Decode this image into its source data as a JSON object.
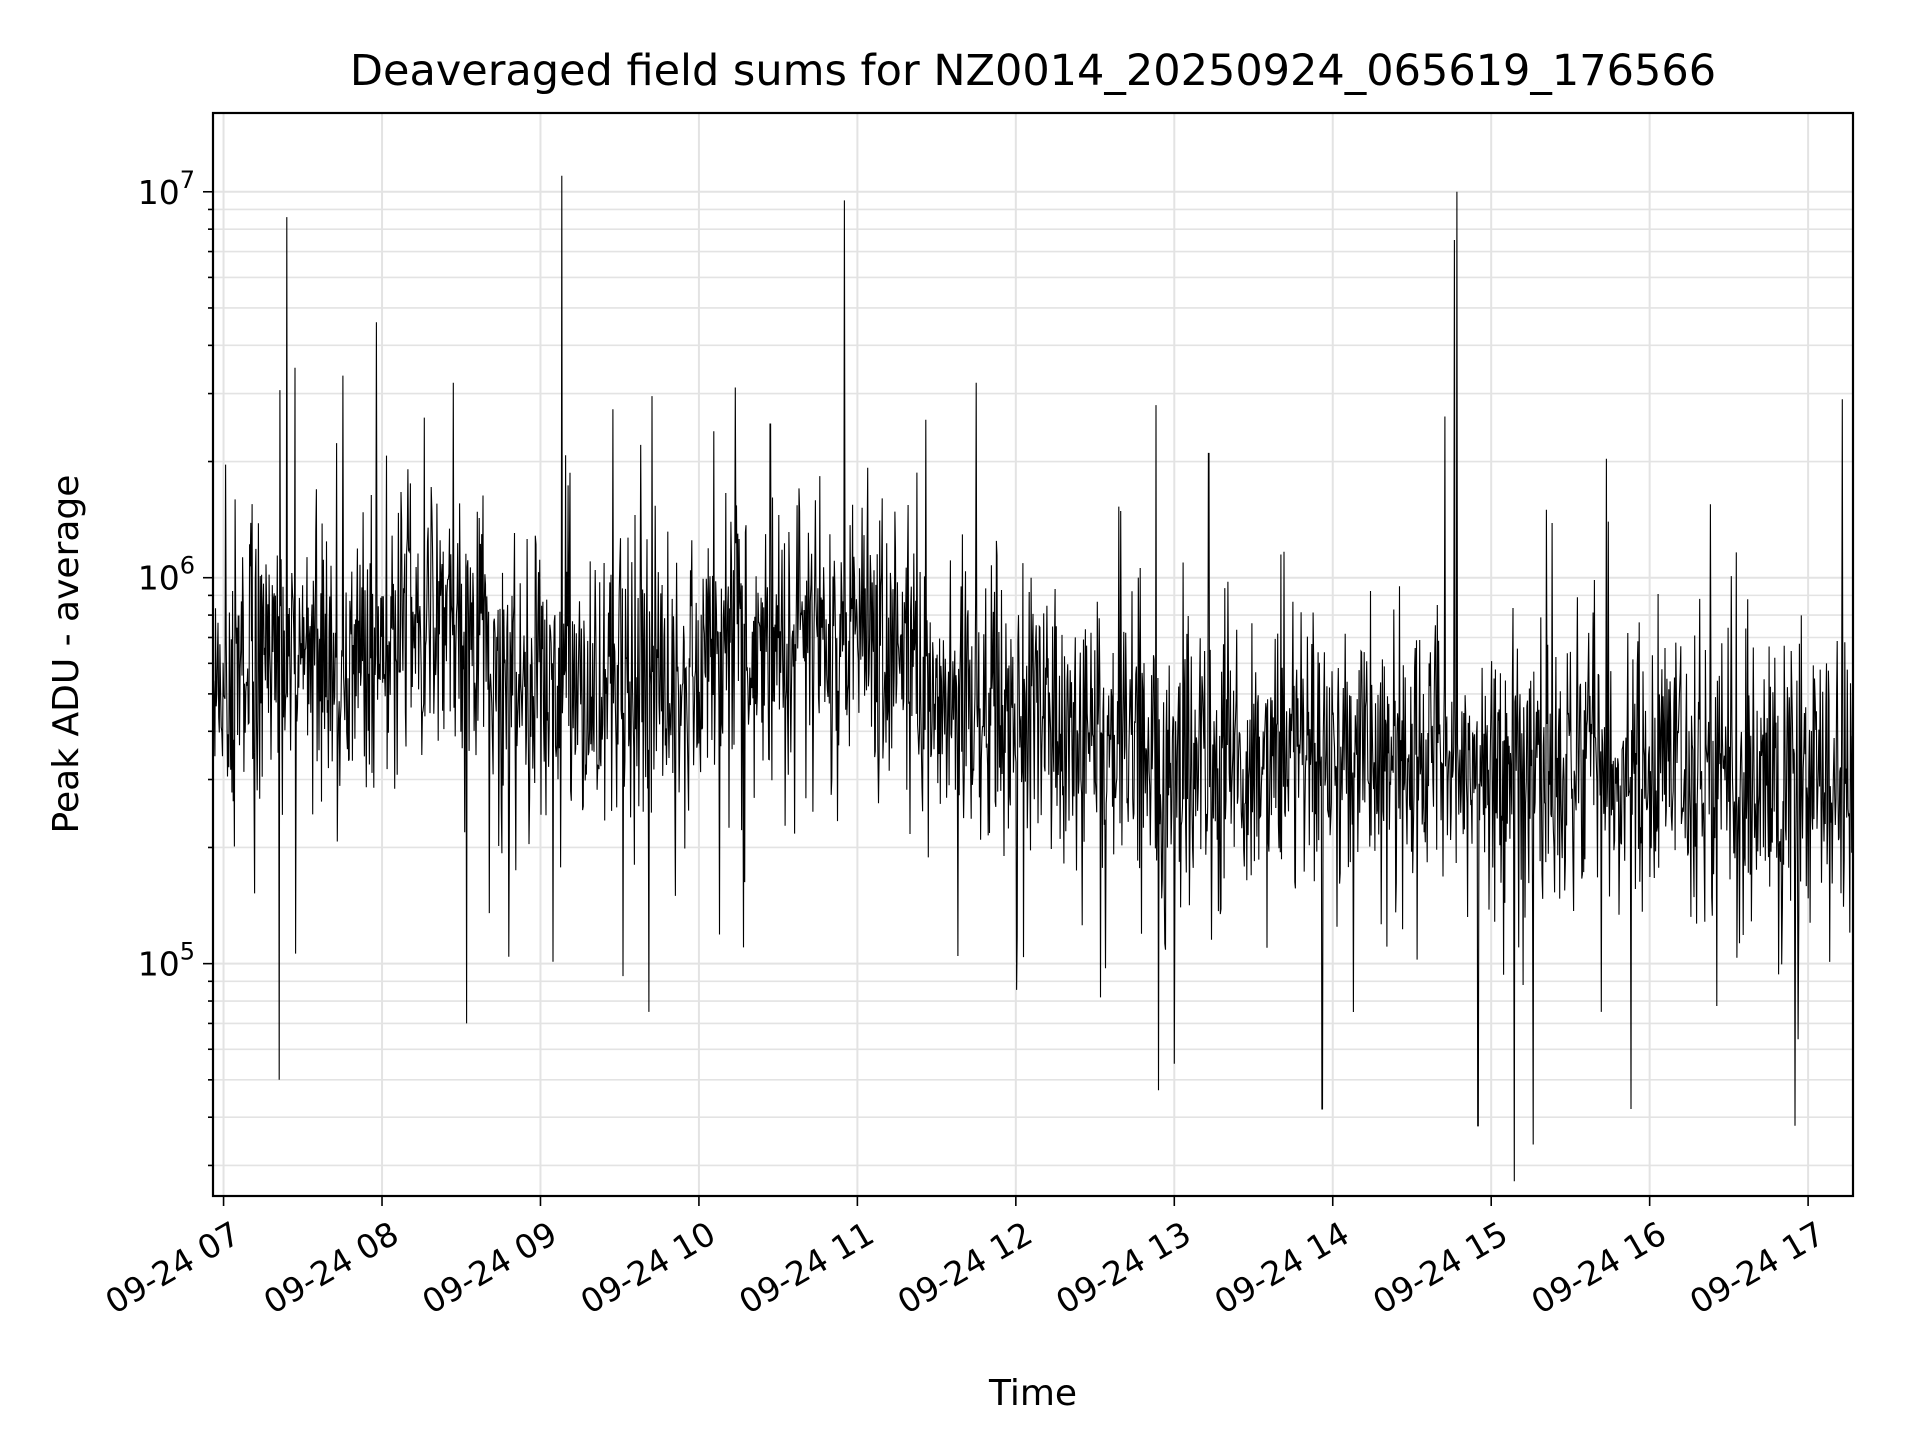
{
  "chart_data": {
    "type": "line",
    "title": "Deaveraged field sums for NZ0014_20250924_065619_176566",
    "xlabel": "Time",
    "ylabel": "Peak ADU - average",
    "yscale": "log",
    "xlim": [
      "2025-09-24T06:56",
      "2025-09-24T17:17"
    ],
    "ylim": [
      25000,
      16000000
    ],
    "x_ticks": [
      "09-24 07",
      "09-24 08",
      "09-24 09",
      "09-24 10",
      "09-24 11",
      "09-24 12",
      "09-24 13",
      "09-24 14",
      "09-24 15",
      "09-24 16",
      "09-24 17"
    ],
    "y_ticks": [
      {
        "value": 100000,
        "base": "10",
        "exp": "5"
      },
      {
        "value": 1000000,
        "base": "10",
        "exp": "6"
      },
      {
        "value": 10000000,
        "base": "10",
        "exp": "7"
      }
    ],
    "grid": true,
    "line_color": "#000000",
    "trend": [
      {
        "x": "2025-09-24T06:56",
        "y": 550000
      },
      {
        "x": "2025-09-24T07:30",
        "y": 620000
      },
      {
        "x": "2025-09-24T08:00",
        "y": 650000
      },
      {
        "x": "2025-09-24T08:20",
        "y": 800000
      },
      {
        "x": "2025-09-24T09:00",
        "y": 500000
      },
      {
        "x": "2025-09-24T09:30",
        "y": 520000
      },
      {
        "x": "2025-09-24T10:00",
        "y": 560000
      },
      {
        "x": "2025-09-24T10:40",
        "y": 750000
      },
      {
        "x": "2025-09-24T11:00",
        "y": 700000
      },
      {
        "x": "2025-09-24T11:40",
        "y": 520000
      },
      {
        "x": "2025-09-24T12:10",
        "y": 450000
      },
      {
        "x": "2025-09-24T13:00",
        "y": 330000
      },
      {
        "x": "2025-09-24T14:00",
        "y": 350000
      },
      {
        "x": "2025-09-24T15:00",
        "y": 330000
      },
      {
        "x": "2025-09-24T16:00",
        "y": 310000
      },
      {
        "x": "2025-09-24T17:17",
        "y": 290000
      }
    ],
    "noise_decades": 0.34,
    "spikes": [
      {
        "x": "2025-09-24T07:24",
        "y": 8600000
      },
      {
        "x": "2025-09-24T07:27",
        "y": 3500000
      },
      {
        "x": "2025-09-24T08:16",
        "y": 2600000
      },
      {
        "x": "2025-09-24T08:27",
        "y": 3200000
      },
      {
        "x": "2025-09-24T09:08",
        "y": 11000000
      },
      {
        "x": "2025-09-24T10:27",
        "y": 2500000
      },
      {
        "x": "2025-09-24T10:55",
        "y": 9500000
      },
      {
        "x": "2025-09-24T11:45",
        "y": 3200000
      },
      {
        "x": "2025-09-24T12:53",
        "y": 2800000
      },
      {
        "x": "2025-09-24T13:13",
        "y": 2100000
      },
      {
        "x": "2025-09-24T14:46",
        "y": 7500000
      },
      {
        "x": "2025-09-24T14:47",
        "y": 10000000
      },
      {
        "x": "2025-09-24T15:21",
        "y": 1500000
      },
      {
        "x": "2025-09-24T16:23",
        "y": 1550000
      },
      {
        "x": "2025-09-24T17:13",
        "y": 2900000
      }
    ],
    "dips": [
      {
        "x": "2025-09-24T07:21",
        "y": 50000
      },
      {
        "x": "2025-09-24T08:32",
        "y": 70000
      },
      {
        "x": "2025-09-24T09:41",
        "y": 75000
      },
      {
        "x": "2025-09-24T12:54",
        "y": 47000
      },
      {
        "x": "2025-09-24T13:00",
        "y": 55000
      },
      {
        "x": "2025-09-24T13:56",
        "y": 42000
      },
      {
        "x": "2025-09-24T14:55",
        "y": 38000
      },
      {
        "x": "2025-09-24T15:16",
        "y": 34000
      },
      {
        "x": "2025-09-24T15:53",
        "y": 42000
      },
      {
        "x": "2025-09-24T16:55",
        "y": 38000
      }
    ]
  }
}
